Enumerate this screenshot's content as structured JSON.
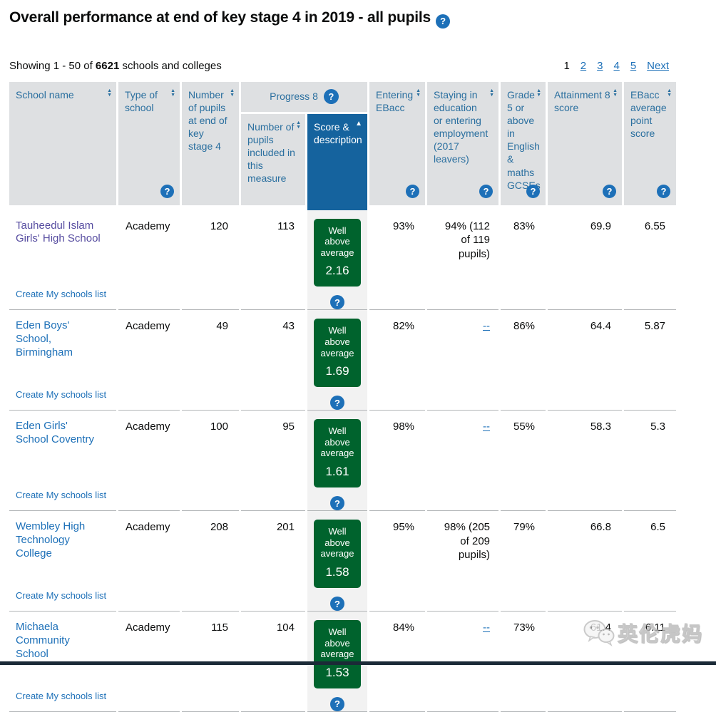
{
  "header": {
    "title": "Overall performance at end of key stage 4 in 2019 - all pupils"
  },
  "showing": {
    "prefix": "Showing 1 - 50 of",
    "count": "6621",
    "suffix": "schools and colleges"
  },
  "pagination": {
    "current": "1",
    "pages": [
      "2",
      "3",
      "4",
      "5"
    ],
    "next": "Next"
  },
  "icons": {
    "help": "?",
    "sort_up": "▲",
    "sort_down": "▼",
    "sorted": "▲"
  },
  "colors": {
    "link_blue": "#1d70b8",
    "visited_purple": "#564ca0",
    "header_grey": "#dee0e2",
    "header_link_blue": "#2a6f9f",
    "selected_header_blue": "#15639e",
    "score_green": "#00632d",
    "row_border_grey": "#b1b4b6",
    "score_column_grey": "#f2f2f2"
  },
  "table": {
    "create_list_label": "Create My schools list",
    "columns": {
      "school_name": "School name",
      "type_of_school": "Type of school",
      "pupils_ks4": "Number of pupils at end of key stage 4",
      "progress8": "Progress 8",
      "p8_pupils": "Number of pupils included in this measure",
      "p8_score": "Score & description",
      "entering_ebacc": "Entering EBacc",
      "staying": "Staying in education or entering employment (2017 leavers)",
      "grade5": "Grade 5 or above in English & maths GCSEs",
      "attainment8": "Attainment 8 score",
      "ebacc_aps": "EBacc average point score"
    },
    "rows": [
      {
        "name": "Tauheedul Islam Girls' High School",
        "visited": true,
        "type": "Academy",
        "pupils_ks4": "120",
        "p8_pupils": "113",
        "p8_desc": "Well above average",
        "p8_score": "2.16",
        "entering_ebacc": "93%",
        "staying": "94% (112 of 119 pupils)",
        "suppressed": false,
        "grade5": "83%",
        "attainment8": "69.9",
        "ebacc_aps": "6.55"
      },
      {
        "name": "Eden Boys' School, Birmingham",
        "visited": false,
        "type": "Academy",
        "pupils_ks4": "49",
        "p8_pupils": "43",
        "p8_desc": "Well above average",
        "p8_score": "1.69",
        "entering_ebacc": "82%",
        "staying": "--",
        "suppressed": true,
        "grade5": "86%",
        "attainment8": "64.4",
        "ebacc_aps": "5.87"
      },
      {
        "name": "Eden Girls' School Coventry",
        "visited": false,
        "type": "Academy",
        "pupils_ks4": "100",
        "p8_pupils": "95",
        "p8_desc": "Well above average",
        "p8_score": "1.61",
        "entering_ebacc": "98%",
        "staying": "--",
        "suppressed": true,
        "grade5": "55%",
        "attainment8": "58.3",
        "ebacc_aps": "5.3"
      },
      {
        "name": "Wembley High Technology College",
        "visited": false,
        "type": "Academy",
        "pupils_ks4": "208",
        "p8_pupils": "201",
        "p8_desc": "Well above average",
        "p8_score": "1.58",
        "entering_ebacc": "95%",
        "staying": "98% (205 of 209 pupils)",
        "suppressed": false,
        "grade5": "79%",
        "attainment8": "66.8",
        "ebacc_aps": "6.5"
      },
      {
        "name": "Michaela Community School",
        "visited": false,
        "type": "Academy",
        "pupils_ks4": "115",
        "p8_pupils": "104",
        "p8_desc": "Well above average",
        "p8_score": "1.53",
        "entering_ebacc": "84%",
        "staying": "--",
        "suppressed": true,
        "grade5": "73%",
        "attainment8": "61.4",
        "ebacc_aps": "6.11"
      }
    ]
  },
  "watermark": {
    "text": "英伦虎妈"
  }
}
